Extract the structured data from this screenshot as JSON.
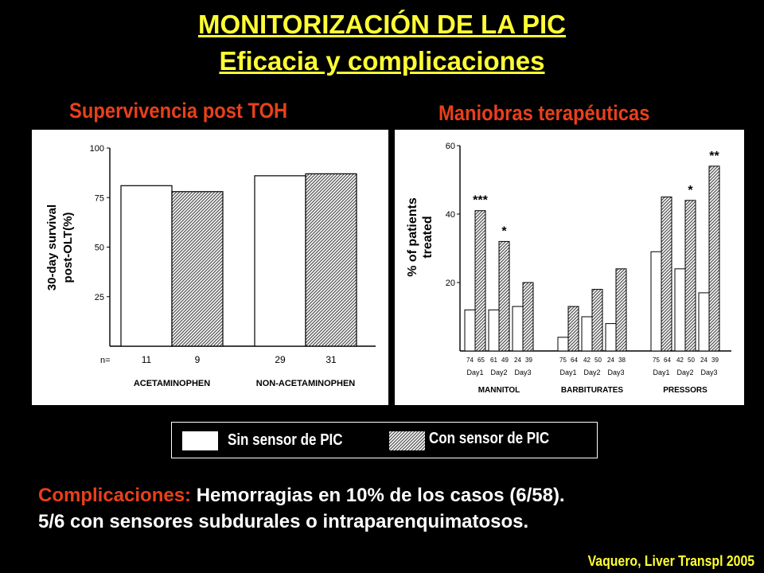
{
  "title": "MONITORIZACIÓN DE LA PIC",
  "subtitle": "Eficacia y complicaciones",
  "left_heading": "Supervivencia post TOH",
  "right_heading": "Maniobras terapéuticas",
  "legend": {
    "without": "Sin sensor de PIC",
    "with": "Con sensor de PIC"
  },
  "complications": {
    "label": "Complicaciones:",
    "line1": "Hemorragias en 10% de los casos (6/58).",
    "line2": "5/6 con sensores subdurales o intraparenquimatosos."
  },
  "reference": "Vaquero, Liver Transpl 2005",
  "colors": {
    "title": "#ffff33",
    "heading": "#e8401a",
    "background": "#000000"
  },
  "chart_data": [
    {
      "type": "bar",
      "ylabel": "30-day survival post-OLT(%)",
      "ylim": [
        0,
        100
      ],
      "yticks": [
        25,
        50,
        75,
        100
      ],
      "n_label": "n=",
      "groups": [
        {
          "name": "ACETAMINOPHEN",
          "without": 81,
          "with": 78,
          "n_without": "11",
          "n_with": "9"
        },
        {
          "name": "NON-ACETAMINOPHEN",
          "without": 86,
          "with": 87,
          "n_without": "29",
          "n_with": "31"
        }
      ]
    },
    {
      "type": "bar",
      "ylabel": "% of patients treated",
      "ylim": [
        0,
        60
      ],
      "yticks": [
        20,
        40,
        60
      ],
      "groups": [
        {
          "name": "MANNITOL",
          "days": [
            {
              "day": "Day1",
              "n_without": "74",
              "n_with": "65",
              "without": 12,
              "with": 41,
              "sig": "***"
            },
            {
              "day": "Day2",
              "n_without": "61",
              "n_with": "49",
              "without": 12,
              "with": 32,
              "sig": "*"
            },
            {
              "day": "Day3",
              "n_without": "24",
              "n_with": "39",
              "without": 13,
              "with": 20,
              "sig": ""
            }
          ]
        },
        {
          "name": "BARBITURATES",
          "days": [
            {
              "day": "Day1",
              "n_without": "75",
              "n_with": "64",
              "without": 4,
              "with": 13,
              "sig": ""
            },
            {
              "day": "Day2",
              "n_without": "42",
              "n_with": "50",
              "without": 10,
              "with": 18,
              "sig": ""
            },
            {
              "day": "Day3",
              "n_without": "24",
              "n_with": "38",
              "without": 8,
              "with": 24,
              "sig": ""
            }
          ]
        },
        {
          "name": "PRESSORS",
          "days": [
            {
              "day": "Day1",
              "n_without": "75",
              "n_with": "64",
              "without": 29,
              "with": 45,
              "sig": ""
            },
            {
              "day": "Day2",
              "n_without": "42",
              "n_with": "50",
              "without": 24,
              "with": 44,
              "sig": "*"
            },
            {
              "day": "Day3",
              "n_without": "24",
              "n_with": "39",
              "without": 17,
              "with": 54,
              "sig": "**"
            }
          ]
        }
      ]
    }
  ]
}
